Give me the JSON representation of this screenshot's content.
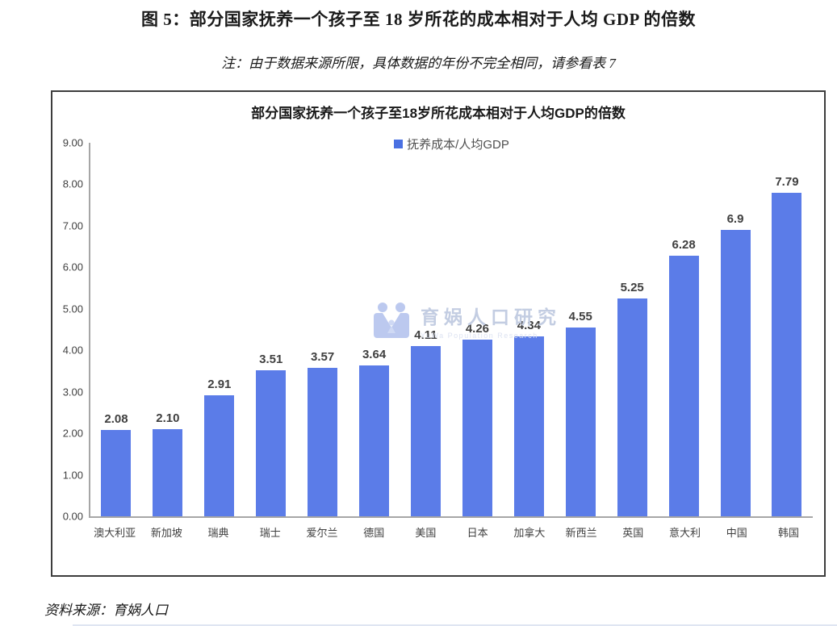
{
  "figure": {
    "title": "图 5：部分国家抚养一个孩子至 18 岁所花的成本相对于人均 GDP 的倍数",
    "note": "注：由于数据来源所限，具体数据的年份不完全相同，请参看表 7",
    "source": "资料来源：育娲人口"
  },
  "watermark": {
    "text": "育娲人口研究",
    "subtext": "YuWa Population Research"
  },
  "chart_data": {
    "type": "bar",
    "title": "部分国家抚养一个孩子至18岁所花成本相对于人均GDP的倍数",
    "legend": [
      "抚养成本/人均GDP"
    ],
    "legend_position": "top",
    "categories": [
      "澳大利亚",
      "新加坡",
      "瑞典",
      "瑞士",
      "爱尔兰",
      "德国",
      "美国",
      "日本",
      "加拿大",
      "新西兰",
      "英国",
      "意大利",
      "中国",
      "韩国"
    ],
    "values": [
      2.08,
      2.1,
      2.91,
      3.51,
      3.57,
      3.64,
      4.11,
      4.26,
      4.34,
      4.55,
      5.25,
      6.28,
      6.9,
      7.79
    ],
    "value_labels": [
      "2.08",
      "2.10",
      "2.91",
      "3.51",
      "3.57",
      "3.64",
      "4.11",
      "4.26",
      "4.34",
      "4.55",
      "5.25",
      "6.28",
      "6.9",
      "7.79"
    ],
    "xlabel": "",
    "ylabel": "",
    "ylim": [
      0,
      9
    ],
    "yticks": [
      "9.00",
      "8.00",
      "7.00",
      "6.00",
      "5.00",
      "4.00",
      "3.00",
      "2.00",
      "1.00",
      "0.00"
    ],
    "grid": false
  },
  "colors": {
    "bar": "#5b7ce8",
    "legend_swatch": "#4a70e2",
    "chart_border": "#3d3d3d",
    "axis_line": "#a6a6a6",
    "text_dark": "#1a1a1a",
    "label_gray": "#3f3f3f",
    "watermark_blue": "#bcc9ef",
    "watermark_text": "#c3cde2",
    "bottom_rule": "#dfe5f2"
  }
}
